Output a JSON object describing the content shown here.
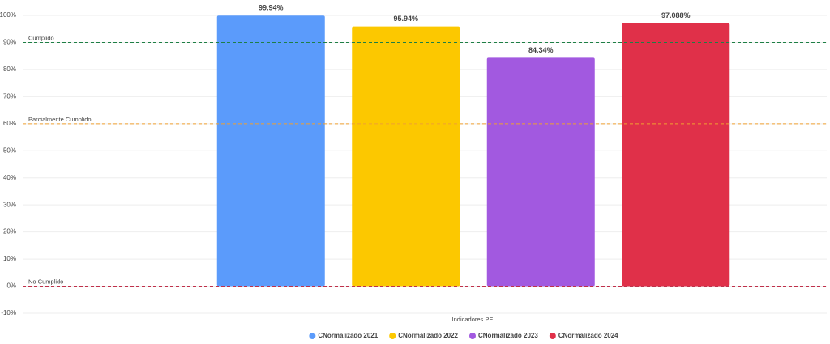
{
  "chart_data": {
    "type": "bar",
    "categories": [
      "Indicadores PEI"
    ],
    "series": [
      {
        "name": "CNormalizado 2021",
        "color": "#5b9bfb",
        "values": [
          99.94
        ],
        "value_labels": [
          "99.94%"
        ]
      },
      {
        "name": "CNormalizado 2022",
        "color": "#fcc800",
        "values": [
          95.94
        ],
        "value_labels": [
          "95.94%"
        ]
      },
      {
        "name": "CNormalizado 2023",
        "color": "#a259e0",
        "values": [
          84.34
        ],
        "value_labels": [
          "84.34%"
        ]
      },
      {
        "name": "CNormalizado 2024",
        "color": "#e03049",
        "values": [
          97.088
        ],
        "value_labels": [
          "97.088%"
        ]
      }
    ],
    "ylim": [
      -10,
      100
    ],
    "yticks": [
      {
        "value": -10,
        "label": "-10%"
      },
      {
        "value": 0,
        "label": "0%"
      },
      {
        "value": 10,
        "label": "10%"
      },
      {
        "value": 20,
        "label": "20%"
      },
      {
        "value": 30,
        "label": "30%"
      },
      {
        "value": 40,
        "label": "40%"
      },
      {
        "value": 50,
        "label": "50%"
      },
      {
        "value": 60,
        "label": "60%"
      },
      {
        "value": 70,
        "label": "70%"
      },
      {
        "value": 80,
        "label": "80%"
      },
      {
        "value": 90,
        "label": "90%"
      },
      {
        "value": 100,
        "label": "100%"
      }
    ],
    "grid": true,
    "reference_lines": [
      {
        "label": "Cumplido",
        "value": 90,
        "color": "#1e7f45"
      },
      {
        "label": "Parcialmente Cumplido",
        "value": 60,
        "color": "#f0a030"
      },
      {
        "label": "No Cumplido",
        "value": 0,
        "color": "#c0304a"
      }
    ],
    "legend": "bottom"
  }
}
